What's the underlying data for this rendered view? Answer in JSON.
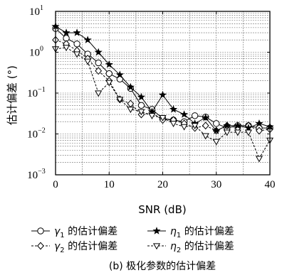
{
  "chart_data": {
    "type": "line",
    "caption": "(b) 极化参数的估计偏差",
    "xlabel": "SNR (dB)",
    "ylabel": "估计偏差 (°)",
    "xlim": [
      0,
      40
    ],
    "ylim": [
      0.001,
      10
    ],
    "yscale": "log",
    "grid": "dotted",
    "x_ticks": [
      "0",
      "10",
      "20",
      "30",
      "40"
    ],
    "y_ticks": [
      {
        "base": "10",
        "exp": "1",
        "value": 10
      },
      {
        "base": "10",
        "exp": "0",
        "value": 1
      },
      {
        "base": "10",
        "exp": "−1",
        "value": 0.1
      },
      {
        "base": "10",
        "exp": "−2",
        "value": 0.01
      },
      {
        "base": "10",
        "exp": "−3",
        "value": 0.001
      }
    ],
    "x": [
      0,
      2,
      4,
      6,
      8,
      10,
      12,
      14,
      16,
      18,
      20,
      22,
      24,
      26,
      28,
      30,
      32,
      34,
      36,
      38,
      40
    ],
    "legend_placement": "bottom",
    "series": [
      {
        "name": "γ1 的估计偏差",
        "legend": {
          "sym": "γ",
          "sub": "1",
          "text": " 的估计偏差"
        },
        "marker": "circle",
        "line": "solid",
        "values": [
          3.8,
          2.2,
          1.6,
          0.9,
          0.55,
          0.3,
          0.22,
          0.13,
          0.05,
          0.04,
          0.024,
          0.022,
          0.02,
          0.028,
          0.026,
          0.018,
          0.014,
          0.016,
          0.016,
          0.014,
          0.014
        ]
      },
      {
        "name": "γ2 的估计偏差",
        "legend": {
          "sym": "γ",
          "sub": "2",
          "text": " 的估计偏差"
        },
        "marker": "diamond",
        "line": "dashed",
        "values": [
          2.0,
          1.6,
          1.1,
          0.7,
          0.35,
          0.2,
          0.07,
          0.055,
          0.03,
          0.033,
          0.022,
          0.022,
          0.018,
          0.014,
          0.016,
          0.012,
          0.016,
          0.014,
          0.016,
          0.012,
          0.013
        ]
      },
      {
        "name": "η1 的估计偏差",
        "legend": {
          "sym": "η",
          "sub": "1",
          "text": " 的估计偏差"
        },
        "marker": "star",
        "line": "solid",
        "values": [
          4.3,
          3.0,
          3.0,
          2.0,
          1.0,
          0.5,
          0.28,
          0.14,
          0.08,
          0.035,
          0.09,
          0.04,
          0.03,
          0.018,
          0.025,
          0.012,
          0.016,
          0.016,
          0.014,
          0.018,
          0.015
        ]
      },
      {
        "name": "η2 的估计偏差",
        "legend": {
          "sym": "η",
          "sub": "2",
          "text": " 的估计偏差"
        },
        "marker": "triangle-down",
        "line": "dashed",
        "values": [
          1.2,
          1.3,
          0.9,
          0.6,
          0.1,
          0.18,
          0.07,
          0.04,
          0.035,
          0.028,
          0.025,
          0.018,
          0.015,
          0.016,
          0.009,
          0.0065,
          0.011,
          0.011,
          0.011,
          0.0025,
          0.007
        ]
      }
    ]
  }
}
